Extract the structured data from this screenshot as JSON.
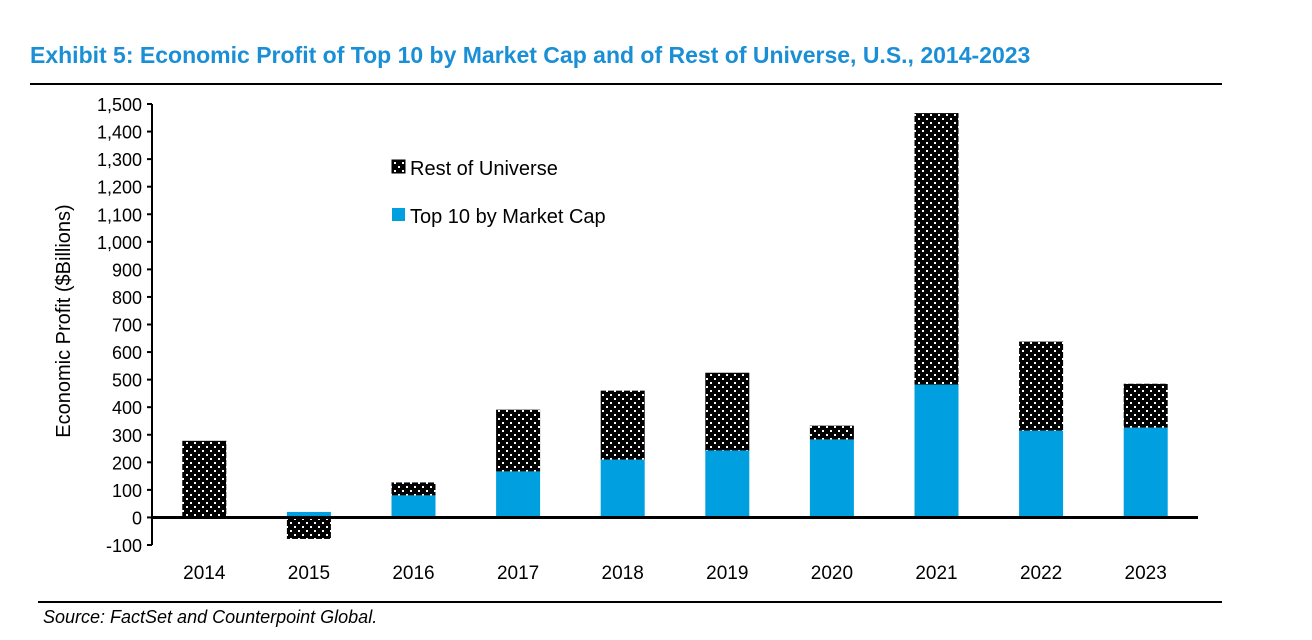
{
  "title": "Exhibit 5: Economic Profit of Top 10 by Market Cap and of Rest of Universe, U.S., 2014-2023",
  "source": "Source: FactSet and Counterpoint Global.",
  "colors": {
    "title": "#1a8fd6",
    "top10": "#009fdf",
    "rest": "#000000"
  },
  "chart_data": {
    "type": "bar",
    "stacked": true,
    "title": "Exhibit 5: Economic Profit of Top 10 by Market Cap and of Rest of Universe, U.S., 2014-2023",
    "xlabel": "",
    "ylabel": "Economic Profit ($Billions)",
    "ylim": [
      -100,
      1500
    ],
    "yticks": [
      -100,
      0,
      100,
      200,
      300,
      400,
      500,
      600,
      700,
      800,
      900,
      1000,
      1100,
      1200,
      1300,
      1400,
      1500
    ],
    "ytick_labels": [
      "-100",
      "0",
      "100",
      "200",
      "300",
      "400",
      "500",
      "600",
      "700",
      "800",
      "900",
      "1,000",
      "1,100",
      "1,200",
      "1,300",
      "1,400",
      "1,500"
    ],
    "categories": [
      "2014",
      "2015",
      "2016",
      "2017",
      "2018",
      "2019",
      "2020",
      "2021",
      "2022",
      "2023"
    ],
    "series": [
      {
        "name": "Top 10 by Market Cap",
        "pattern": "solid",
        "values": [
          5,
          20,
          80,
          167,
          210,
          243,
          283,
          482,
          315,
          326
        ]
      },
      {
        "name": "Rest of Universe",
        "pattern": "dotted",
        "values": [
          273,
          -78,
          47,
          224,
          250,
          282,
          50,
          985,
          323,
          159
        ]
      }
    ],
    "legend": {
      "position": "top-left-inside",
      "entries": [
        "Rest of Universe",
        "Top 10 by Market Cap"
      ]
    },
    "grid": false
  }
}
